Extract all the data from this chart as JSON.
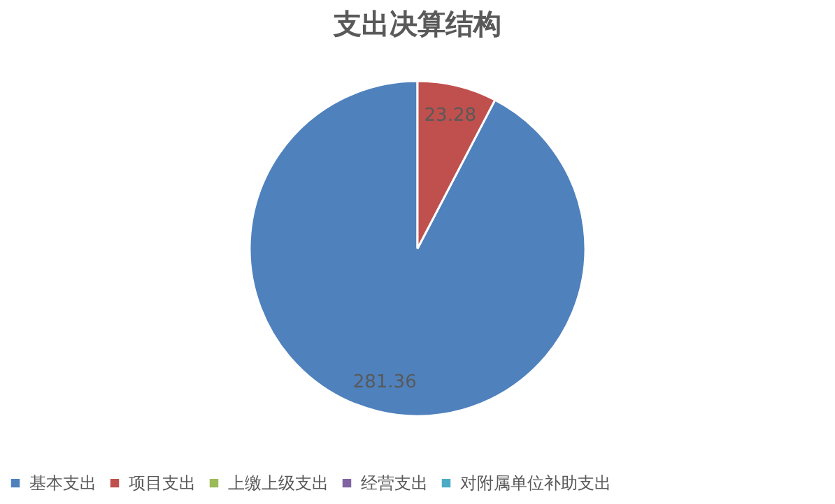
{
  "chart_data": {
    "type": "pie",
    "title": "支出决算结构",
    "categories": [
      "基本支出",
      "项目支出",
      "上缴上级支出",
      "经营支出",
      "对附属单位补助支出"
    ],
    "values": [
      281.36,
      23.28,
      0,
      0,
      0
    ],
    "colors": [
      "#4f81bd",
      "#c0504d",
      "#9bbb59",
      "#8064a2",
      "#4bacc6"
    ],
    "value_labels": [
      "281.36",
      "23.28",
      null,
      null,
      null
    ],
    "legend": "bottom"
  }
}
